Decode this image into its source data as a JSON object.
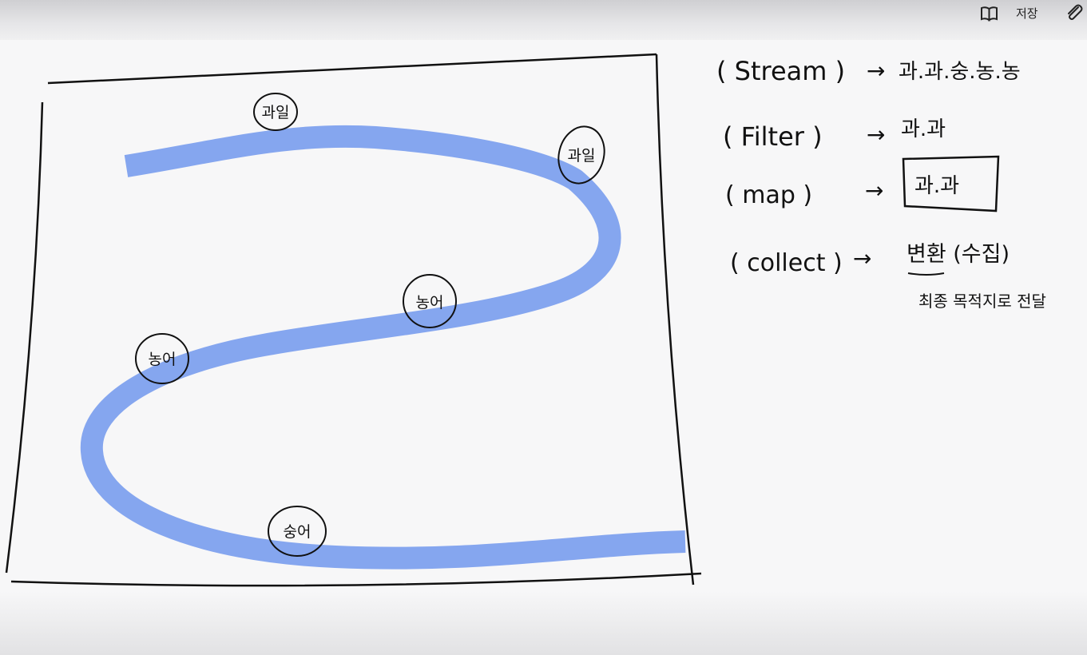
{
  "toolbar": {
    "save_label": "저장",
    "icons": [
      "book-open-icon",
      "paperclip-icon"
    ]
  },
  "diagram": {
    "path_color": "#85a6ef",
    "nodes": [
      {
        "label": "과일"
      },
      {
        "label": "과일"
      },
      {
        "label": "농어"
      },
      {
        "label": "농어"
      },
      {
        "label": "숭어"
      }
    ],
    "notes": [
      {
        "term": "( Stream )",
        "arrow": "→",
        "desc": "과.과.숭.농.농"
      },
      {
        "term": "( Filter )",
        "arrow": "→",
        "desc": "과.과"
      },
      {
        "term": "( map )",
        "arrow": "→",
        "desc": "과.과"
      },
      {
        "term": "( collect )",
        "arrow": "→",
        "desc": "변환 (수집)",
        "sub": "최종 목적지로 전달"
      }
    ]
  }
}
